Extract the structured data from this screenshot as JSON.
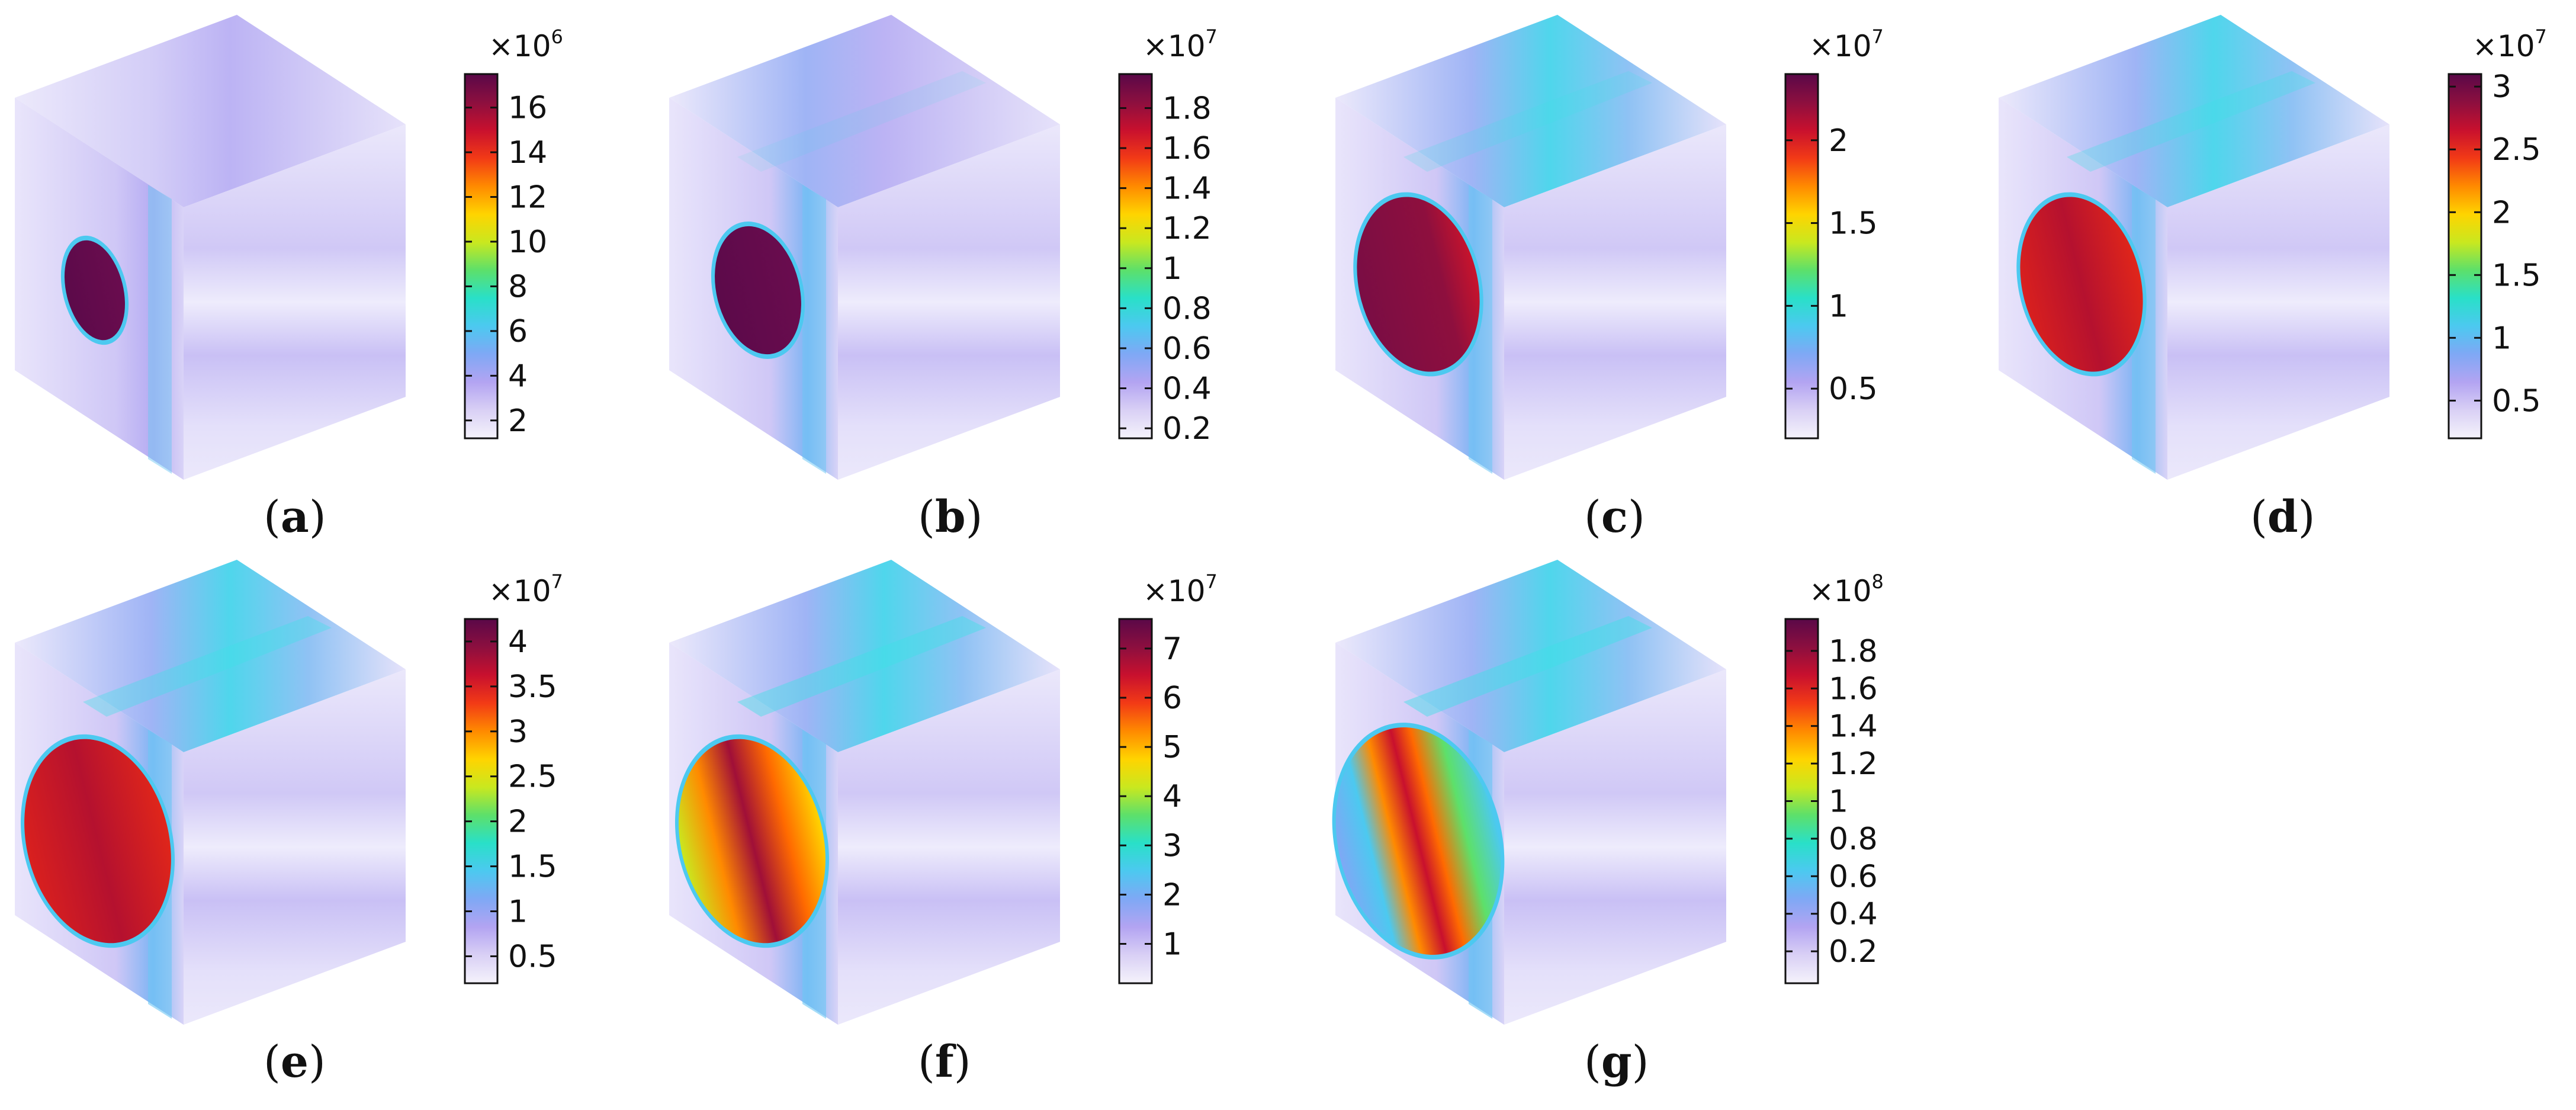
{
  "panels": [
    {
      "label": "a",
      "multiplier_base": "×10",
      "exponent": "6",
      "ticks": [
        "2",
        "4",
        "6",
        "8",
        "10",
        "12",
        "14",
        "16"
      ],
      "tick_values": [
        2,
        4,
        6,
        8,
        10,
        12,
        14,
        16
      ],
      "range": [
        1.2,
        17.5
      ],
      "hole": "small",
      "ridge": 0.45,
      "hole_pattern": "solid"
    },
    {
      "label": "b",
      "multiplier_base": "×10",
      "exponent": "7",
      "ticks": [
        "0.2",
        "0.4",
        "0.6",
        "0.8",
        "1",
        "1.2",
        "1.4",
        "1.6",
        "1.8"
      ],
      "tick_values": [
        0.2,
        0.4,
        0.6,
        0.8,
        1,
        1.2,
        1.4,
        1.6,
        1.8
      ],
      "range": [
        0.15,
        1.97
      ],
      "hole": "medium",
      "ridge": 0.55,
      "hole_pattern": "solid"
    },
    {
      "label": "c",
      "multiplier_base": "×10",
      "exponent": "7",
      "ticks": [
        "0.5",
        "1",
        "1.5",
        "2"
      ],
      "tick_values": [
        0.5,
        1,
        1.5,
        2
      ],
      "range": [
        0.2,
        2.4
      ],
      "hole": "large",
      "ridge": 0.65,
      "hole_pattern": "dark-red"
    },
    {
      "label": "d",
      "multiplier_base": "×10",
      "exponent": "7",
      "ticks": [
        "0.5",
        "1",
        "1.5",
        "2",
        "2.5",
        "3"
      ],
      "tick_values": [
        0.5,
        1,
        1.5,
        2,
        2.5,
        3
      ],
      "range": [
        0.2,
        3.1
      ],
      "hole": "large",
      "ridge": 0.75,
      "hole_pattern": "red-dark"
    },
    {
      "label": "e",
      "multiplier_base": "×10",
      "exponent": "7",
      "ticks": [
        "0.5",
        "1",
        "1.5",
        "2",
        "2.5",
        "3",
        "3.5",
        "4"
      ],
      "tick_values": [
        0.5,
        1,
        1.5,
        2,
        2.5,
        3,
        3.5,
        4
      ],
      "range": [
        0.2,
        4.25
      ],
      "hole": "xlarge",
      "ridge": 0.82,
      "hole_pattern": "red-dark"
    },
    {
      "label": "f",
      "multiplier_base": "×10",
      "exponent": "7",
      "ticks": [
        "1",
        "2",
        "3",
        "4",
        "5",
        "6",
        "7"
      ],
      "tick_values": [
        1,
        2,
        3,
        4,
        5,
        6,
        7
      ],
      "range": [
        0.2,
        7.6
      ],
      "hole": "xlarge",
      "ridge": 0.88,
      "hole_pattern": "banded"
    },
    {
      "label": "g",
      "multiplier_base": "×10",
      "exponent": "8",
      "ticks": [
        "0.2",
        "0.4",
        "0.6",
        "0.8",
        "1",
        "1.2",
        "1.4",
        "1.6",
        "1.8"
      ],
      "tick_values": [
        0.2,
        0.4,
        0.6,
        0.8,
        1,
        1.2,
        1.4,
        1.6,
        1.8
      ],
      "range": [
        0.03,
        1.97
      ],
      "hole": "xxlarge",
      "ridge": 0.9,
      "hole_pattern": "vertical-band"
    }
  ],
  "colormap": [
    "#f5f3fb",
    "#d9d0f5",
    "#b3a4f2",
    "#7fa8f5",
    "#4cc9f0",
    "#29e0c8",
    "#5de06a",
    "#c9e81f",
    "#ffd400",
    "#ff8a00",
    "#f23a16",
    "#c8102e",
    "#8c0f3f",
    "#5a0848"
  ]
}
